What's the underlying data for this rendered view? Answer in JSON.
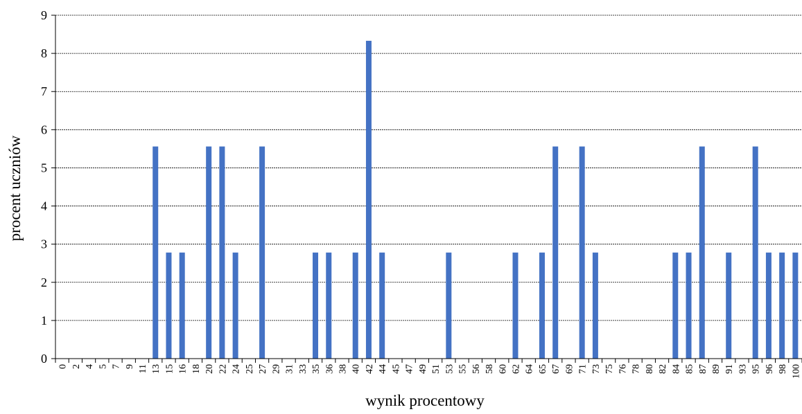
{
  "chart_data": {
    "type": "bar",
    "xlabel": "wynik procentowy",
    "ylabel": "procent uczniów",
    "ylim": [
      0,
      9
    ],
    "yticks": [
      0,
      1,
      2,
      3,
      4,
      5,
      6,
      7,
      8,
      9
    ],
    "grid": true,
    "bar_color": "#4472c4",
    "categories": [
      "0",
      "2",
      "4",
      "5",
      "7",
      "9",
      "11",
      "13",
      "15",
      "16",
      "18",
      "20",
      "22",
      "24",
      "25",
      "27",
      "29",
      "31",
      "33",
      "35",
      "36",
      "38",
      "40",
      "42",
      "44",
      "45",
      "47",
      "49",
      "51",
      "53",
      "55",
      "56",
      "58",
      "60",
      "62",
      "64",
      "65",
      "67",
      "69",
      "71",
      "73",
      "75",
      "76",
      "78",
      "80",
      "82",
      "84",
      "85",
      "87",
      "89",
      "91",
      "93",
      "95",
      "96",
      "98",
      "100"
    ],
    "values": [
      0,
      0,
      0,
      0,
      0,
      0,
      0,
      5.56,
      2.78,
      2.78,
      0,
      5.56,
      5.56,
      2.78,
      0,
      5.56,
      0,
      0,
      0,
      2.78,
      2.78,
      0,
      2.78,
      8.33,
      2.78,
      0,
      0,
      0,
      0,
      2.78,
      0,
      0,
      0,
      0,
      2.78,
      0,
      2.78,
      5.56,
      0,
      5.56,
      2.78,
      0,
      0,
      0,
      0,
      0,
      2.78,
      2.78,
      5.56,
      0,
      2.78,
      0,
      5.56,
      2.78,
      2.78,
      2.78
    ]
  }
}
